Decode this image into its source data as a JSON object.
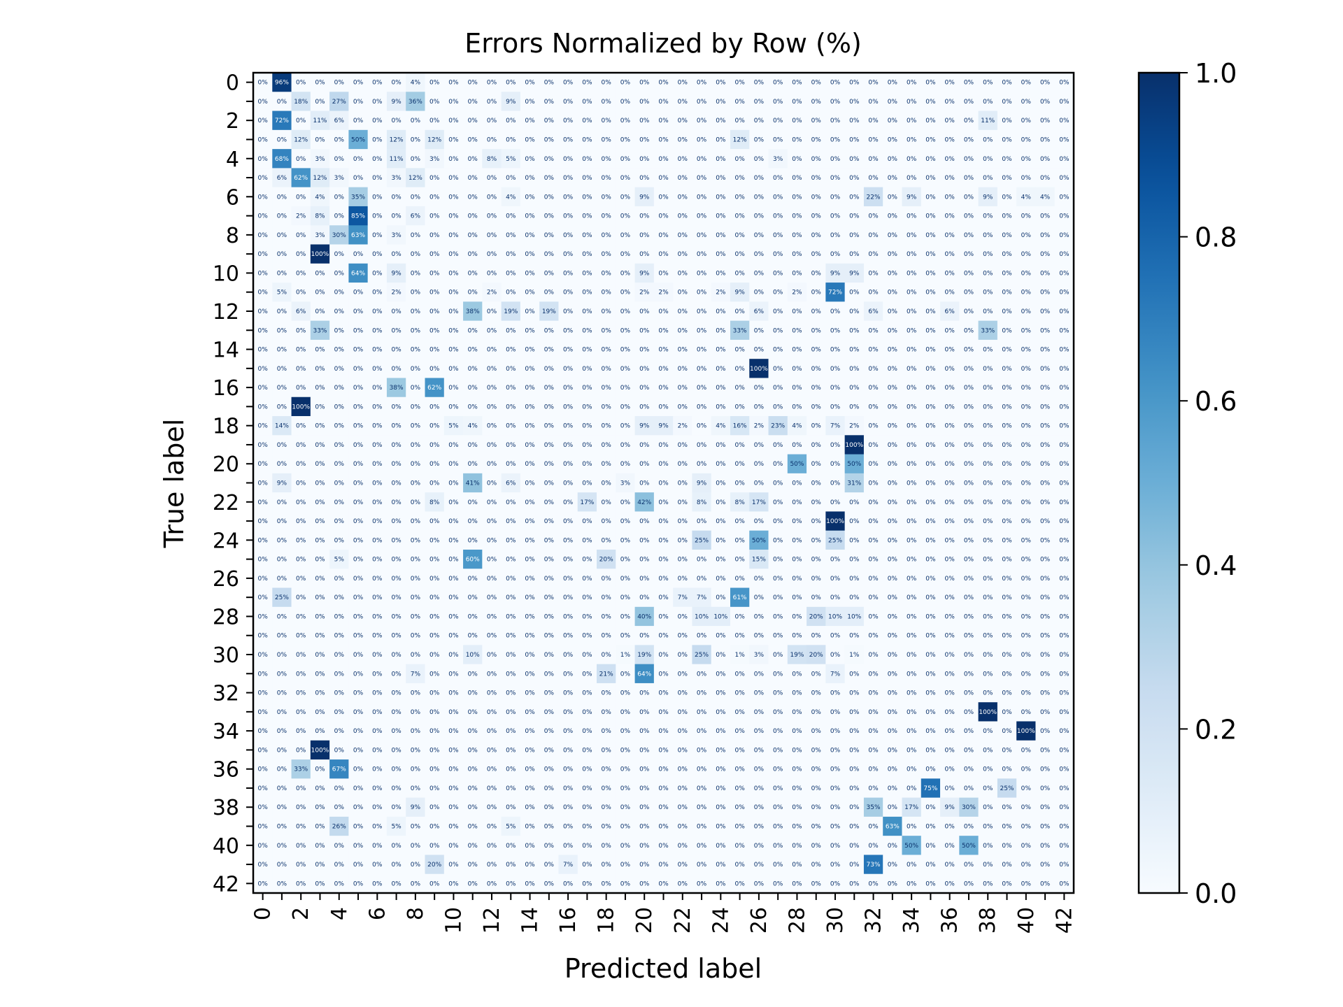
{
  "chart_data": {
    "type": "heatmap",
    "title": "Errors Normalized by Row (%)",
    "xlabel": "Predicted label",
    "ylabel": "True label",
    "size": 43,
    "tick_step": 2,
    "colormap": "Blues",
    "colorbar": {
      "min": 0.0,
      "max": 1.0,
      "ticks": [
        "0.0",
        "0.2",
        "0.4",
        "0.6",
        "0.8",
        "1.0"
      ],
      "placement": "right"
    },
    "colors": {
      "low": "#f7fbff",
      "mid": "#6baed6",
      "high": "#08306b"
    },
    "cell_label_suffix": "%",
    "rows": {
      "0": [
        [
          1,
          96
        ],
        [
          8,
          4
        ]
      ],
      "1": [
        [
          2,
          18
        ],
        [
          4,
          27
        ],
        [
          7,
          9
        ],
        [
          8,
          36
        ],
        [
          13,
          9
        ]
      ],
      "2": [
        [
          1,
          72
        ],
        [
          3,
          11
        ],
        [
          4,
          6
        ],
        [
          38,
          11
        ]
      ],
      "3": [
        [
          2,
          12
        ],
        [
          5,
          50
        ],
        [
          7,
          12
        ],
        [
          9,
          12
        ],
        [
          25,
          12
        ]
      ],
      "4": [
        [
          1,
          68
        ],
        [
          3,
          3
        ],
        [
          7,
          11
        ],
        [
          9,
          3
        ],
        [
          12,
          8
        ],
        [
          13,
          5
        ],
        [
          27,
          3
        ]
      ],
      "5": [
        [
          1,
          6
        ],
        [
          2,
          62
        ],
        [
          3,
          12
        ],
        [
          4,
          3
        ],
        [
          7,
          3
        ],
        [
          8,
          12
        ]
      ],
      "6": [
        [
          3,
          4
        ],
        [
          5,
          35
        ],
        [
          13,
          4
        ],
        [
          20,
          9
        ],
        [
          32,
          22
        ],
        [
          34,
          9
        ],
        [
          38,
          9
        ],
        [
          40,
          4
        ],
        [
          41,
          4
        ]
      ],
      "7": [
        [
          2,
          2
        ],
        [
          3,
          8
        ],
        [
          5,
          85
        ],
        [
          8,
          6
        ]
      ],
      "8": [
        [
          3,
          3
        ],
        [
          4,
          30
        ],
        [
          5,
          63
        ],
        [
          7,
          3
        ]
      ],
      "9": [
        [
          3,
          100
        ]
      ],
      "10": [
        [
          5,
          64
        ],
        [
          7,
          9
        ],
        [
          20,
          9
        ],
        [
          30,
          9
        ],
        [
          31,
          9
        ]
      ],
      "11": [
        [
          1,
          5
        ],
        [
          7,
          2
        ],
        [
          12,
          2
        ],
        [
          20,
          2
        ],
        [
          21,
          2
        ],
        [
          24,
          2
        ],
        [
          25,
          9
        ],
        [
          28,
          2
        ],
        [
          30,
          72
        ]
      ],
      "12": [
        [
          2,
          6
        ],
        [
          11,
          38
        ],
        [
          13,
          19
        ],
        [
          15,
          19
        ],
        [
          26,
          6
        ],
        [
          32,
          6
        ],
        [
          36,
          6
        ]
      ],
      "13": [
        [
          3,
          33
        ],
        [
          25,
          33
        ],
        [
          38,
          33
        ]
      ],
      "14": [],
      "15": [
        [
          26,
          100
        ]
      ],
      "16": [
        [
          7,
          38
        ],
        [
          9,
          62
        ]
      ],
      "17": [
        [
          2,
          100
        ]
      ],
      "18": [
        [
          1,
          14
        ],
        [
          10,
          5
        ],
        [
          11,
          4
        ],
        [
          20,
          9
        ],
        [
          21,
          9
        ],
        [
          22,
          2
        ],
        [
          24,
          4
        ],
        [
          25,
          16
        ],
        [
          26,
          2
        ],
        [
          27,
          23
        ],
        [
          28,
          4
        ],
        [
          30,
          7
        ],
        [
          31,
          2
        ]
      ],
      "19": [
        [
          31,
          100
        ]
      ],
      "20": [
        [
          28,
          50
        ],
        [
          31,
          50
        ]
      ],
      "21": [
        [
          1,
          9
        ],
        [
          11,
          41
        ],
        [
          13,
          6
        ],
        [
          19,
          3
        ],
        [
          23,
          9
        ],
        [
          31,
          31
        ]
      ],
      "22": [
        [
          9,
          8
        ],
        [
          17,
          17
        ],
        [
          20,
          42
        ],
        [
          23,
          8
        ],
        [
          25,
          8
        ],
        [
          26,
          17
        ]
      ],
      "23": [
        [
          30,
          100
        ]
      ],
      "24": [
        [
          23,
          25
        ],
        [
          26,
          50
        ],
        [
          30,
          25
        ]
      ],
      "25": [
        [
          4,
          5
        ],
        [
          11,
          60
        ],
        [
          18,
          20
        ],
        [
          26,
          15
        ]
      ],
      "26": [],
      "27": [
        [
          1,
          25
        ],
        [
          22,
          7
        ],
        [
          23,
          7
        ],
        [
          25,
          61
        ]
      ],
      "28": [
        [
          20,
          40
        ],
        [
          23,
          10
        ],
        [
          24,
          10
        ],
        [
          29,
          20
        ],
        [
          30,
          10
        ],
        [
          31,
          10
        ]
      ],
      "29": [],
      "30": [
        [
          11,
          10
        ],
        [
          19,
          1
        ],
        [
          20,
          19
        ],
        [
          23,
          25
        ],
        [
          25,
          1
        ],
        [
          26,
          3
        ],
        [
          28,
          19
        ],
        [
          29,
          20
        ],
        [
          31,
          1
        ]
      ],
      "31": [
        [
          8,
          7
        ],
        [
          18,
          21
        ],
        [
          20,
          64
        ],
        [
          30,
          7
        ]
      ],
      "32": [],
      "33": [
        [
          38,
          100
        ]
      ],
      "34": [
        [
          40,
          100
        ]
      ],
      "35": [
        [
          3,
          100
        ]
      ],
      "36": [
        [
          2,
          33
        ],
        [
          4,
          67
        ]
      ],
      "37": [
        [
          35,
          75
        ],
        [
          39,
          25
        ]
      ],
      "38": [
        [
          8,
          9
        ],
        [
          32,
          35
        ],
        [
          34,
          17
        ],
        [
          36,
          9
        ],
        [
          37,
          30
        ]
      ],
      "39": [
        [
          4,
          26
        ],
        [
          7,
          5
        ],
        [
          13,
          5
        ],
        [
          33,
          63
        ]
      ],
      "40": [
        [
          34,
          50
        ],
        [
          37,
          50
        ]
      ],
      "41": [
        [
          9,
          20
        ],
        [
          16,
          7
        ],
        [
          32,
          73
        ]
      ],
      "42": []
    }
  }
}
